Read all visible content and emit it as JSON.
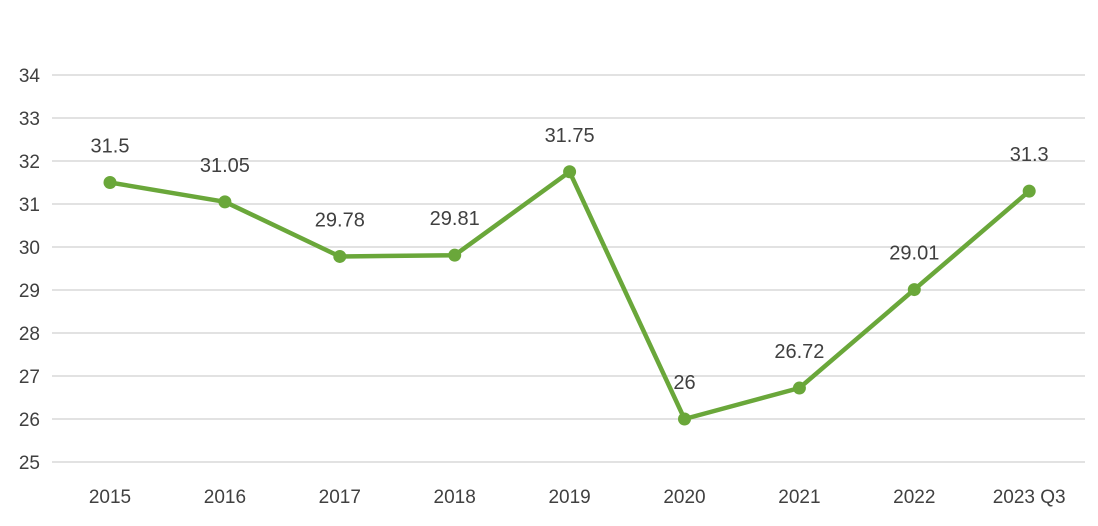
{
  "chart_data": {
    "type": "line",
    "categories": [
      "2015",
      "2016",
      "2017",
      "2018",
      "2019",
      "2020",
      "2021",
      "2022",
      "2023 Q3"
    ],
    "series": [
      {
        "values": [
          31.5,
          31.05,
          29.78,
          29.81,
          31.75,
          26,
          26.72,
          29.01,
          31.3
        ],
        "labels": [
          "31.5",
          "31.05",
          "29.78",
          "29.81",
          "31.75",
          "26",
          "26.72",
          "29.01",
          "31.3"
        ],
        "color": "#6aa73a"
      }
    ],
    "ylim": [
      25,
      34
    ],
    "yticks": [
      "25",
      "26",
      "27",
      "28",
      "29",
      "30",
      "31",
      "32",
      "33",
      "34"
    ],
    "grid": true,
    "gridline_color": "#d9d9d9",
    "text_color": "#404040"
  }
}
